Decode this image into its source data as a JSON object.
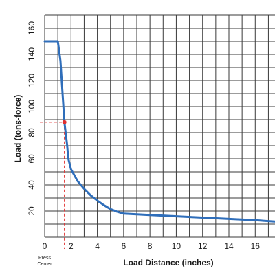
{
  "chart_data": {
    "type": "line",
    "title": "",
    "xlabel": "Load Distance (inches)",
    "ylabel": "Load (tons-force)",
    "xlim": [
      0,
      17.5
    ],
    "ylim": [
      0,
      170
    ],
    "grid": true,
    "x_major_ticks": [
      0,
      2,
      4,
      6,
      8,
      10,
      12,
      14,
      16
    ],
    "y_major_ticks": [
      20,
      40,
      60,
      80,
      100,
      120,
      140,
      160
    ],
    "x_tick_labels": [
      "0",
      "2",
      "4",
      "6",
      "8",
      "10",
      "12",
      "14",
      "16"
    ],
    "y_tick_labels": [
      "20",
      "40",
      "60",
      "80",
      "100",
      "120",
      "140",
      "160"
    ],
    "origin_note": [
      "Press",
      "Center"
    ],
    "series": [
      {
        "color": "#2f6eba",
        "x": [
          0,
          1.0,
          1.2,
          1.5,
          1.7,
          1.8,
          2.0,
          2.5,
          3.0,
          3.5,
          4.0,
          4.5,
          5.0,
          5.5,
          6.0,
          7.0,
          8.0,
          10.0,
          12.0,
          14.0,
          16.0,
          17.5
        ],
        "y": [
          150,
          150,
          135,
          88,
          71,
          60,
          52,
          43,
          37,
          32,
          28,
          24.5,
          21.5,
          19.5,
          18,
          17.5,
          17,
          16,
          15,
          14,
          13,
          12
        ]
      }
    ],
    "marker": {
      "x": 1.5,
      "y": 88,
      "color": "#e03030",
      "line_color": "#e03030"
    }
  }
}
